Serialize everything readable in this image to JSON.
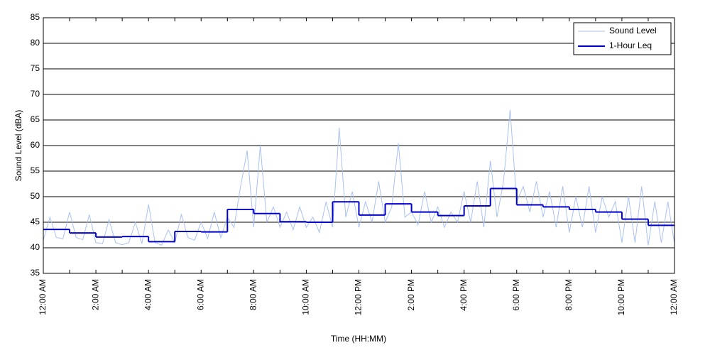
{
  "chart_data": {
    "type": "line",
    "x_label": "Time (HH:MM)",
    "y_label": "Sound Level (dBA)",
    "xlim": [
      0,
      24
    ],
    "xticks": [
      {
        "value": 0,
        "label": "12:00 AM"
      },
      {
        "value": 2,
        "label": "2:00 AM"
      },
      {
        "value": 4,
        "label": "4:00 AM"
      },
      {
        "value": 6,
        "label": "6:00 AM"
      },
      {
        "value": 8,
        "label": "8:00 AM"
      },
      {
        "value": 10,
        "label": "10:00 AM"
      },
      {
        "value": 12,
        "label": "12:00 PM"
      },
      {
        "value": 14,
        "label": "2:00 PM"
      },
      {
        "value": 16,
        "label": "4:00 PM"
      },
      {
        "value": 18,
        "label": "6:00 PM"
      },
      {
        "value": 20,
        "label": "8:00 PM"
      },
      {
        "value": 22,
        "label": "10:00 PM"
      },
      {
        "value": 24,
        "label": "12:00 AM"
      }
    ],
    "xminorticks": [
      1,
      3,
      5,
      7,
      9,
      11,
      13,
      15,
      17,
      19,
      21,
      23
    ],
    "ylim": [
      35,
      85
    ],
    "yticks": [
      35,
      40,
      45,
      50,
      55,
      60,
      65,
      70,
      75,
      80,
      85
    ],
    "grid": true,
    "legend": "top-right",
    "series": [
      {
        "name": "Sound Level",
        "color": "#a9c1f2",
        "style": "line",
        "x": [
          0,
          0.25,
          0.5,
          0.75,
          1,
          1.25,
          1.5,
          1.75,
          2,
          2.25,
          2.5,
          2.75,
          3,
          3.25,
          3.5,
          3.75,
          4,
          4.25,
          4.5,
          4.75,
          5,
          5.25,
          5.5,
          5.75,
          6,
          6.25,
          6.5,
          6.75,
          7,
          7.25,
          7.5,
          7.75,
          8,
          8.25,
          8.5,
          8.75,
          9,
          9.25,
          9.5,
          9.75,
          10,
          10.25,
          10.5,
          10.75,
          11,
          11.25,
          11.5,
          11.75,
          12,
          12.25,
          12.5,
          12.75,
          13,
          13.25,
          13.5,
          13.75,
          14,
          14.25,
          14.5,
          14.75,
          15,
          15.25,
          15.5,
          15.75,
          16,
          16.25,
          16.5,
          16.75,
          17,
          17.25,
          17.5,
          17.75,
          18,
          18.25,
          18.5,
          18.75,
          19,
          19.25,
          19.5,
          19.75,
          20,
          20.25,
          20.5,
          20.75,
          21,
          21.25,
          21.5,
          21.75,
          22,
          22.25,
          22.5,
          22.75,
          23,
          23.25,
          23.5,
          23.75,
          24
        ],
        "values": [
          41.5,
          46,
          42,
          41.8,
          47,
          42,
          41.6,
          46.5,
          41,
          40.8,
          45.5,
          41,
          40.6,
          41,
          45,
          40.8,
          48.5,
          41,
          40.5,
          43.5,
          41,
          46.5,
          42,
          41.5,
          45,
          41.8,
          47,
          42,
          46,
          44,
          52,
          59,
          44,
          60,
          45,
          48,
          44,
          47,
          43.5,
          48,
          44,
          46,
          43,
          49,
          44,
          63.5,
          46,
          51,
          44,
          49,
          45,
          53,
          45,
          48,
          60.5,
          46,
          47,
          44.5,
          51,
          45,
          48,
          44,
          47,
          45,
          51,
          45,
          53,
          44,
          57,
          46,
          53,
          67,
          49,
          52,
          47,
          53,
          46,
          51,
          44,
          52,
          43,
          50,
          44,
          52,
          43,
          50,
          46,
          49,
          41,
          50,
          41,
          52,
          40.5,
          49,
          41,
          49,
          40.8
        ]
      },
      {
        "name": "1-Hour Leq",
        "color": "#0000c8",
        "style": "step",
        "x": [
          0,
          1,
          2,
          3,
          4,
          5,
          6,
          7,
          8,
          9,
          10,
          11,
          12,
          13,
          14,
          15,
          16,
          17,
          18,
          19,
          20,
          21,
          22,
          23
        ],
        "values": [
          43.6,
          42.9,
          42.1,
          42.2,
          41.2,
          43.2,
          43.1,
          47.5,
          46.7,
          45.1,
          45.0,
          49.0,
          46.4,
          48.6,
          47.0,
          46.3,
          48.2,
          51.6,
          48.4,
          48.0,
          47.5,
          47.0,
          45.6,
          44.4
        ]
      }
    ]
  }
}
